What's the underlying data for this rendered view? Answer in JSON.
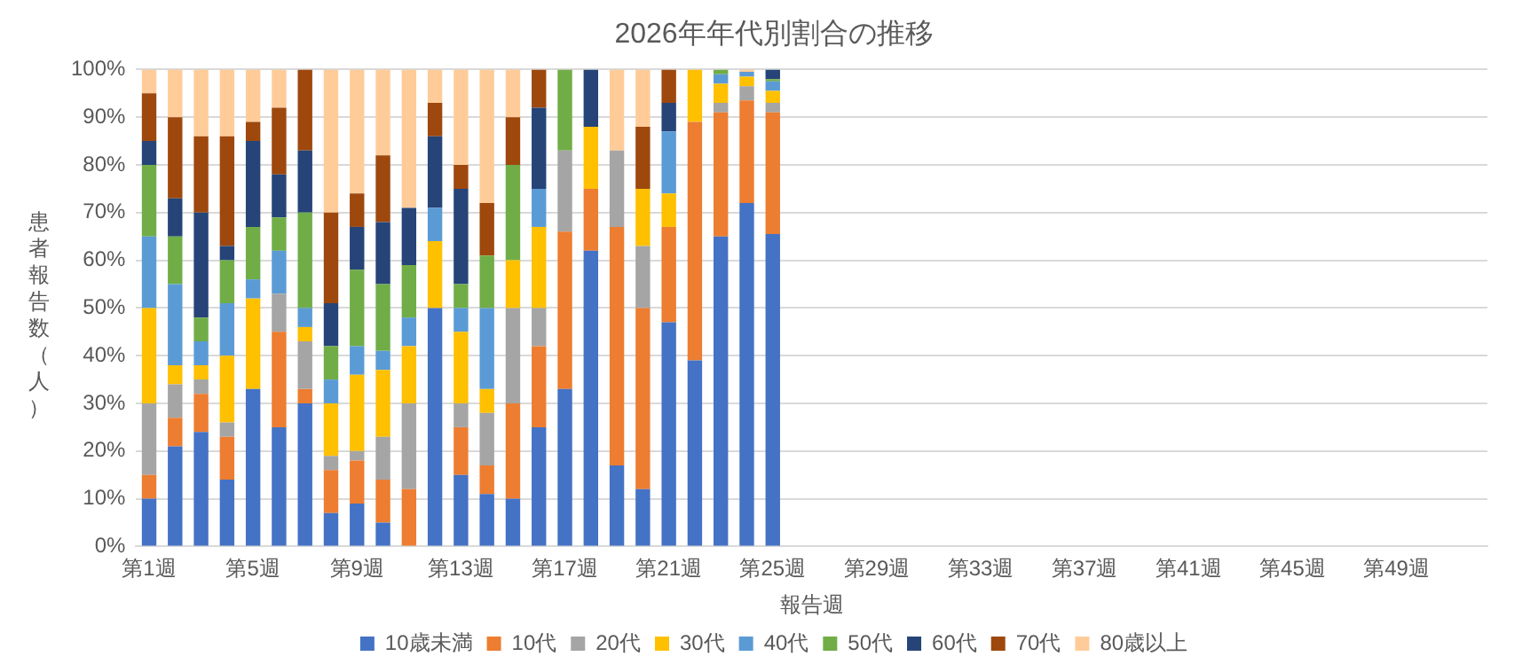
{
  "chart_data": {
    "type": "bar",
    "title": "2026年年代別割合の推移",
    "xlabel": "報告週",
    "ylabel": "患者報告数（人）",
    "categories": [
      "第1週",
      null,
      null,
      null,
      "第5週",
      null,
      null,
      null,
      "第9週",
      null,
      null,
      null,
      "第13週",
      null,
      null,
      null,
      "第17週",
      null,
      null,
      null,
      "第21週",
      null,
      null,
      null,
      "第25週",
      null,
      null,
      null,
      "第29週",
      null,
      null,
      null,
      "第33週",
      null,
      null,
      null,
      "第37週",
      null,
      null,
      null,
      "第41週",
      null,
      null,
      null,
      "第45週",
      null,
      null,
      null,
      "第49週",
      null,
      null,
      null
    ],
    "stacked": true,
    "grid": "y",
    "legend": "bottom",
    "ylim": [
      0,
      100
    ],
    "yticks": [
      {
        "value": 0,
        "label": "0%"
      },
      {
        "value": 10,
        "label": "10%"
      },
      {
        "value": 20,
        "label": "20%"
      },
      {
        "value": 30,
        "label": "30%"
      },
      {
        "value": 40,
        "label": "40%"
      },
      {
        "value": 50,
        "label": "50%"
      },
      {
        "value": 60,
        "label": "60%"
      },
      {
        "value": 70,
        "label": "70%"
      },
      {
        "value": 80,
        "label": "80%"
      },
      {
        "value": 90,
        "label": "90%"
      },
      {
        "value": 100,
        "label": "100%"
      }
    ],
    "series": [
      {
        "name": "10歳未満",
        "color": "#4472c4",
        "values": [
          10,
          21,
          24,
          14,
          33,
          25,
          30,
          7,
          9,
          5,
          0,
          50,
          15,
          11,
          10,
          25,
          33,
          62,
          17,
          12,
          47,
          39,
          65,
          72,
          65.5,
          null,
          null,
          null,
          null,
          null,
          null,
          null,
          null,
          null,
          null,
          null,
          null,
          null,
          null,
          null,
          null,
          null,
          null,
          null,
          null,
          null,
          null,
          null,
          null,
          null,
          null,
          null
        ]
      },
      {
        "name": "10代",
        "color": "#ed7d31",
        "values": [
          5,
          6,
          8,
          9,
          0,
          20,
          3,
          9,
          9,
          9,
          12,
          0,
          10,
          6,
          20,
          17,
          33,
          13,
          50,
          38,
          20,
          50,
          26,
          21.5,
          25.5,
          null,
          null,
          null,
          null,
          null,
          null,
          null,
          null,
          null,
          null,
          null,
          null,
          null,
          null,
          null,
          null,
          null,
          null,
          null,
          null,
          null,
          null,
          null,
          null,
          null,
          null,
          null
        ]
      },
      {
        "name": "20代",
        "color": "#a5a5a5",
        "values": [
          15,
          7,
          3,
          3,
          0,
          8,
          10,
          3,
          2,
          9,
          18,
          0,
          5,
          11,
          20,
          8,
          17,
          0,
          16,
          13,
          0,
          0,
          2,
          3,
          2,
          null,
          null,
          null,
          null,
          null,
          null,
          null,
          null,
          null,
          null,
          null,
          null,
          null,
          null,
          null,
          null,
          null,
          null,
          null,
          null,
          null,
          null,
          null,
          null,
          null,
          null,
          null
        ]
      },
      {
        "name": "30代",
        "color": "#ffc000",
        "values": [
          20,
          4,
          3,
          14,
          19,
          0,
          3,
          11,
          16,
          14,
          12,
          14,
          15,
          5,
          10,
          17,
          0,
          13,
          0,
          12,
          7,
          11,
          4,
          2,
          2.5,
          null,
          null,
          null,
          null,
          null,
          null,
          null,
          null,
          null,
          null,
          null,
          null,
          null,
          null,
          null,
          null,
          null,
          null,
          null,
          null,
          null,
          null,
          null,
          null,
          null,
          null,
          null
        ]
      },
      {
        "name": "40代",
        "color": "#5b9bd5",
        "values": [
          15,
          17,
          5,
          11,
          4,
          9,
          4,
          5,
          6,
          4,
          6,
          7,
          5,
          17,
          0,
          8,
          0,
          0,
          0,
          0,
          13,
          0,
          2,
          1,
          2,
          null,
          null,
          null,
          null,
          null,
          null,
          null,
          null,
          null,
          null,
          null,
          null,
          null,
          null,
          null,
          null,
          null,
          null,
          null,
          null,
          null,
          null,
          null,
          null,
          null,
          null,
          null
        ]
      },
      {
        "name": "50代",
        "color": "#70ad47",
        "values": [
          15,
          10,
          5,
          9,
          11,
          7,
          20,
          7,
          16,
          14,
          11,
          0,
          5,
          11,
          20,
          0,
          17,
          0,
          0,
          0,
          0,
          0,
          1,
          0,
          0.5,
          null,
          null,
          null,
          null,
          null,
          null,
          null,
          null,
          null,
          null,
          null,
          null,
          null,
          null,
          null,
          null,
          null,
          null,
          null,
          null,
          null,
          null,
          null,
          null,
          null,
          null,
          null
        ]
      },
      {
        "name": "60代",
        "color": "#264478",
        "values": [
          5,
          8,
          22,
          3,
          18,
          9,
          13,
          9,
          9,
          13,
          12,
          15,
          20,
          0,
          0,
          17,
          0,
          12,
          0,
          0,
          6,
          0,
          0,
          0,
          2,
          null,
          null,
          null,
          null,
          null,
          null,
          null,
          null,
          null,
          null,
          null,
          null,
          null,
          null,
          null,
          null,
          null,
          null,
          null,
          null,
          null,
          null,
          null,
          null,
          null,
          null,
          null
        ]
      },
      {
        "name": "70代",
        "color": "#9e480e",
        "values": [
          10,
          17,
          16,
          23,
          4,
          14,
          17,
          19,
          7,
          14,
          0,
          7,
          5,
          11,
          10,
          8,
          0,
          0,
          0,
          13,
          7,
          0,
          0,
          0,
          0,
          null,
          null,
          null,
          null,
          null,
          null,
          null,
          null,
          null,
          null,
          null,
          null,
          null,
          null,
          null,
          null,
          null,
          null,
          null,
          null,
          null,
          null,
          null,
          null,
          null,
          null,
          null
        ]
      },
      {
        "name": "80歳以上",
        "color": "#ffcc99",
        "values": [
          5,
          10,
          14,
          14,
          11,
          8,
          0,
          30,
          26,
          18,
          29,
          7,
          20,
          28,
          10,
          0,
          0,
          0,
          17,
          12,
          0,
          0,
          0,
          0.5,
          0,
          null,
          null,
          null,
          null,
          null,
          null,
          null,
          null,
          null,
          null,
          null,
          null,
          null,
          null,
          null,
          null,
          null,
          null,
          null,
          null,
          null,
          null,
          null,
          null,
          null,
          null,
          null
        ]
      }
    ]
  }
}
